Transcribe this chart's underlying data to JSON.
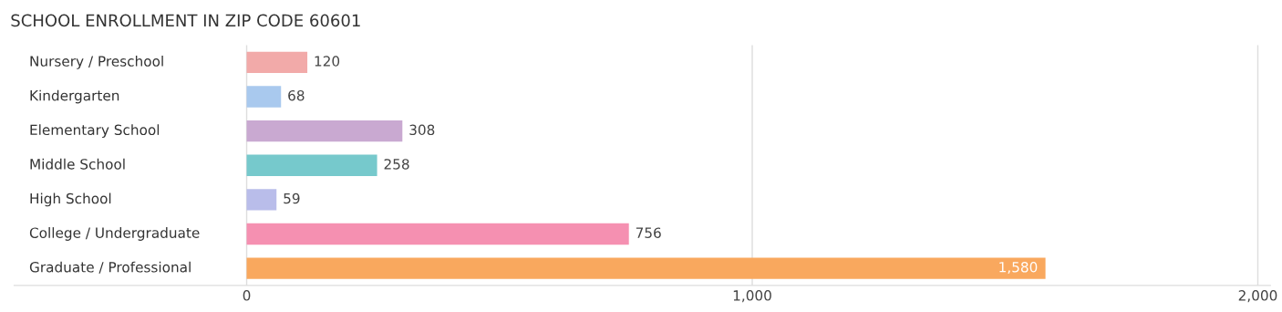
{
  "chart_data": {
    "type": "bar",
    "orientation": "horizontal",
    "title": "SCHOOL ENROLLMENT IN ZIP CODE 60601",
    "categories": [
      "Nursery / Preschool",
      "Kindergarten",
      "Elementary School",
      "Middle School",
      "High School",
      "College / Undergraduate",
      "Graduate / Professional"
    ],
    "values": [
      120,
      68,
      308,
      258,
      59,
      756,
      1580
    ],
    "colors": [
      "#f2aaa9",
      "#a9c9ee",
      "#c9a9d1",
      "#76c9cc",
      "#b9bdea",
      "#f590b1",
      "#f9a85e"
    ],
    "value_labels": [
      "120",
      "68",
      "308",
      "258",
      "59",
      "756",
      "1,580"
    ],
    "xlim": [
      -460,
      2025
    ],
    "xticks": [
      0,
      {
        "value": 1000,
        "label": "1,000"
      },
      {
        "value": 2000,
        "label": "2,000"
      }
    ],
    "grid": "x",
    "legend": false
  }
}
